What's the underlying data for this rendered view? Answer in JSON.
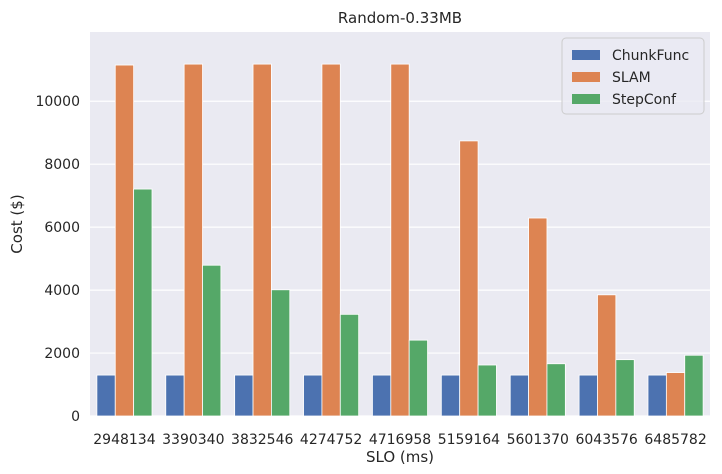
{
  "chart_data": {
    "type": "bar",
    "title": "Random-0.33MB",
    "xlabel": "SLO (ms)",
    "ylabel": "Cost ($)",
    "categories": [
      "2948134",
      "3390340",
      "3832546",
      "4274752",
      "4716958",
      "5159164",
      "5601370",
      "6043576",
      "6485782"
    ],
    "series": [
      {
        "name": "ChunkFunc",
        "color": "#4c72b0",
        "values": [
          1300,
          1300,
          1300,
          1300,
          1300,
          1300,
          1300,
          1300,
          1300
        ]
      },
      {
        "name": "SLAM",
        "color": "#dd8452",
        "values": [
          11150,
          11180,
          11180,
          11180,
          11180,
          8740,
          6290,
          3850,
          1380
        ]
      },
      {
        "name": "StepConf",
        "color": "#55a868",
        "values": [
          7210,
          4790,
          4010,
          3230,
          2410,
          1620,
          1660,
          1790,
          1930
        ]
      }
    ],
    "ylim": [
      0,
      12200
    ],
    "yticks": [
      0,
      2000,
      4000,
      6000,
      8000,
      10000
    ],
    "grid": true,
    "legend_position": "top-right",
    "background": "#eaeaf2"
  }
}
